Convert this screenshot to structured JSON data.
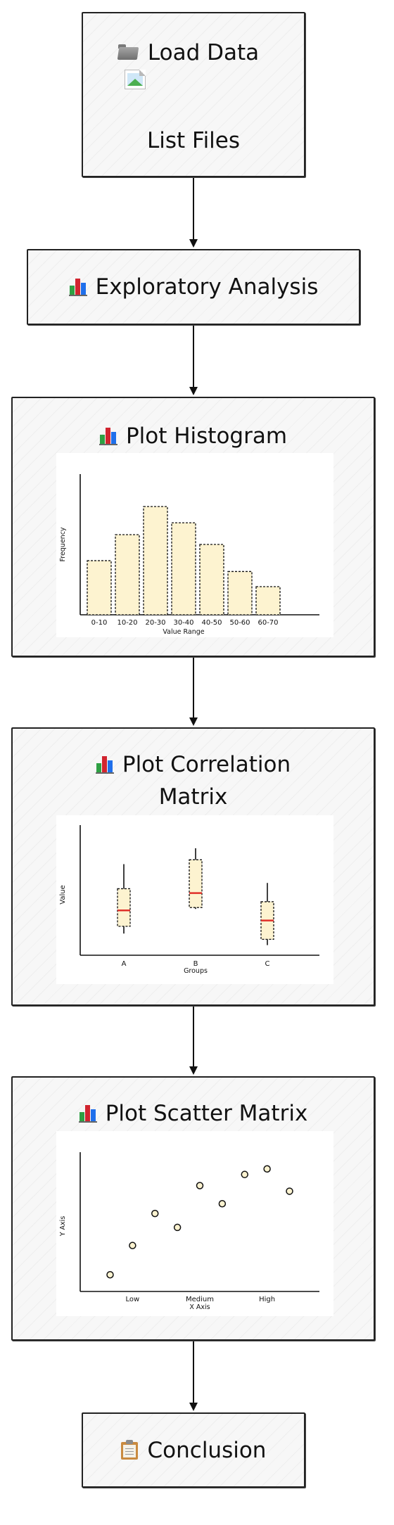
{
  "nodes": {
    "load_data": {
      "title": "Load Data",
      "subtitle": "List Files",
      "icon": "folder-icon",
      "image_icon": "broken-image-icon"
    },
    "exploratory": {
      "title": "Exploratory Analysis",
      "icon": "bar-chart-icon"
    },
    "histogram": {
      "title": "Plot Histogram",
      "icon": "bar-chart-icon"
    },
    "correlation": {
      "title_line1": "Plot Correlation",
      "title_line2": "Matrix",
      "icon": "bar-chart-icon"
    },
    "scatter": {
      "title": "Plot Scatter Matrix",
      "icon": "bar-chart-icon"
    },
    "conclusion": {
      "title": "Conclusion",
      "icon": "clipboard-icon"
    }
  },
  "edges": [
    {
      "from": "load_data",
      "to": "exploratory"
    },
    {
      "from": "exploratory",
      "to": "histogram"
    },
    {
      "from": "histogram",
      "to": "correlation"
    },
    {
      "from": "correlation",
      "to": "scatter"
    },
    {
      "from": "scatter",
      "to": "conclusion"
    }
  ],
  "colors": {
    "bar_fill": "#fdf3d0",
    "median": "#e0302a",
    "border": "#222222"
  },
  "chart_data": [
    {
      "type": "bar",
      "categories": [
        "0-10",
        "10-20",
        "20-30",
        "30-40",
        "40-50",
        "50-60",
        "60-70"
      ],
      "values": [
        5,
        7.4,
        10,
        8.5,
        6.5,
        4,
        2.6
      ],
      "xlabel": "Value Range",
      "ylabel": "Frequency",
      "ylim": [
        0,
        13
      ]
    },
    {
      "type": "box",
      "categories": [
        "A",
        "B",
        "C"
      ],
      "boxes": [
        {
          "name": "A",
          "whisker_low": 1.5,
          "q1": 2.0,
          "median": 3.1,
          "q3": 4.6,
          "whisker_high": 6.3
        },
        {
          "name": "B",
          "whisker_low": 3.2,
          "q1": 3.3,
          "median": 4.3,
          "q3": 6.6,
          "whisker_high": 7.4
        },
        {
          "name": "C",
          "whisker_low": 0.7,
          "q1": 1.1,
          "median": 2.4,
          "q3": 3.7,
          "whisker_high": 5.0
        }
      ],
      "xlabel": "Groups",
      "ylabel": "Value",
      "ylim": [
        0,
        9
      ]
    },
    {
      "type": "scatter",
      "x_categories": [
        "Low",
        "Medium",
        "High"
      ],
      "points": [
        {
          "x": 0.4,
          "y": 1.2
        },
        {
          "x": 0.7,
          "y": 3.3
        },
        {
          "x": 1.0,
          "y": 5.6
        },
        {
          "x": 1.3,
          "y": 4.6
        },
        {
          "x": 1.6,
          "y": 7.6
        },
        {
          "x": 1.9,
          "y": 6.3
        },
        {
          "x": 2.2,
          "y": 8.4
        },
        {
          "x": 2.5,
          "y": 8.8
        },
        {
          "x": 2.8,
          "y": 7.2
        }
      ],
      "xlabel": "X Axis",
      "ylabel": "Y Axis",
      "xlim": [
        0,
        3.2
      ],
      "ylim": [
        0,
        10
      ]
    }
  ]
}
